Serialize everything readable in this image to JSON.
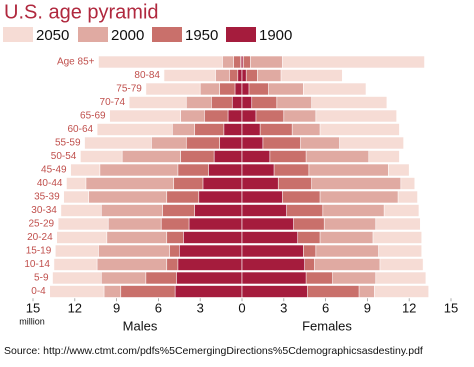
{
  "chart_data": {
    "type": "pyramid",
    "title": "U.S. age pyramid",
    "categories": [
      "Age 85+",
      "80-84",
      "75-79",
      "70-74",
      "65-69",
      "60-64",
      "55-59",
      "50-54",
      "45-49",
      "40-44",
      "35-39",
      "30-34",
      "25-29",
      "20-24",
      "15-19",
      "10-14",
      "5-9",
      "0-4"
    ],
    "series": [
      {
        "name": "2050",
        "color": "#f6dcd5",
        "males": [
          10.3,
          5.6,
          6.9,
          8.1,
          9.5,
          10.4,
          11.3,
          11.6,
          12.3,
          12.6,
          12.8,
          13.0,
          13.2,
          13.3,
          13.4,
          13.5,
          13.6,
          13.8
        ],
        "females": [
          13.1,
          7.2,
          8.9,
          10.4,
          11.1,
          11.3,
          11.6,
          11.3,
          12.0,
          12.4,
          12.6,
          12.7,
          12.8,
          12.9,
          12.9,
          13.0,
          13.2,
          13.4
        ]
      },
      {
        "name": "2000",
        "color": "#e0aaa2",
        "males": [
          1.4,
          1.9,
          3.0,
          4.0,
          4.4,
          5.0,
          6.5,
          8.6,
          10.2,
          11.2,
          11.0,
          10.1,
          9.6,
          9.7,
          10.3,
          10.4,
          10.1,
          9.9
        ],
        "females": [
          2.9,
          2.8,
          4.4,
          5.0,
          5.3,
          5.6,
          7.0,
          9.1,
          10.5,
          11.4,
          11.2,
          10.2,
          9.6,
          9.4,
          9.8,
          9.9,
          9.6,
          9.5
        ]
      },
      {
        "name": "1950",
        "color": "#c9706b",
        "males": [
          0.6,
          0.9,
          1.6,
          2.2,
          2.7,
          3.4,
          4.0,
          4.4,
          4.6,
          4.9,
          5.4,
          5.7,
          5.8,
          5.4,
          5.2,
          5.4,
          6.9,
          8.7
        ],
        "females": [
          0.6,
          1.1,
          1.9,
          2.5,
          3.0,
          3.6,
          4.2,
          4.6,
          4.8,
          5.0,
          5.6,
          5.8,
          5.9,
          5.6,
          5.3,
          5.2,
          6.5,
          8.4
        ]
      },
      {
        "name": "1900",
        "color": "#a51c3d",
        "males": [
          0.1,
          0.3,
          0.5,
          0.7,
          1.0,
          1.3,
          1.6,
          2.0,
          2.4,
          2.8,
          3.1,
          3.4,
          3.8,
          4.2,
          4.5,
          4.6,
          4.7,
          4.8
        ],
        "females": [
          0.1,
          0.3,
          0.5,
          0.7,
          1.0,
          1.3,
          1.5,
          2.0,
          2.3,
          2.6,
          2.9,
          3.2,
          3.7,
          4.0,
          4.4,
          4.5,
          4.6,
          4.7
        ]
      }
    ],
    "xlim": [
      -15,
      15
    ],
    "xticks": [
      {
        "value": -15,
        "label": "15"
      },
      {
        "value": -12,
        "label": "12"
      },
      {
        "value": -9,
        "label": "9"
      },
      {
        "value": -6,
        "label": "6"
      },
      {
        "value": -3,
        "label": "3"
      },
      0,
      3,
      6,
      9,
      12,
      15
    ],
    "x_unit": "million",
    "left_label": "Males",
    "right_label": "Females",
    "source": "Source: http://www.ctmt.com/pdfs%5CemergingDirections%5Cdemographicsasdestiny.pdf"
  }
}
